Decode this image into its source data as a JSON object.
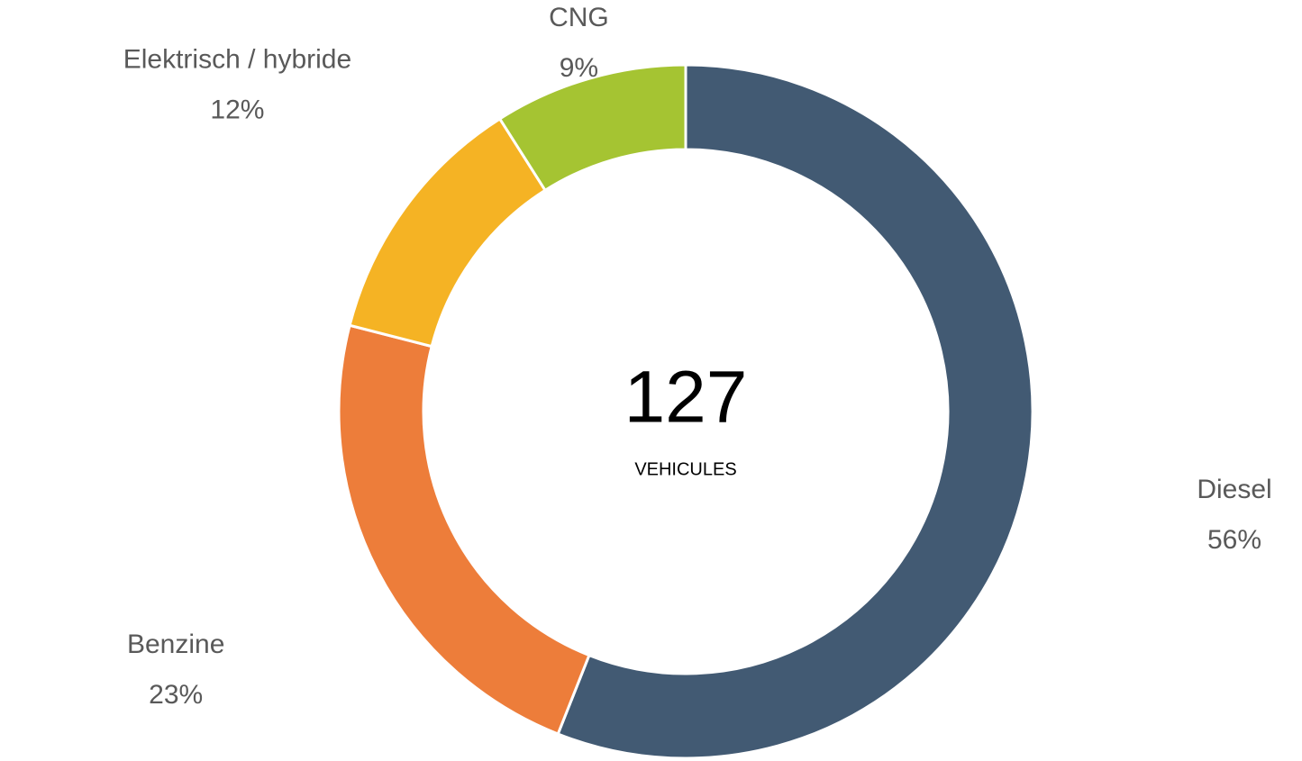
{
  "chart_data": {
    "type": "donut",
    "categories": [
      "Diesel",
      "Benzine",
      "Elektrisch / hybride",
      "CNG"
    ],
    "values": [
      56,
      23,
      12,
      9
    ],
    "value_labels": [
      "56%",
      "23%",
      "12%",
      "9%"
    ],
    "colors": [
      "#425a73",
      "#ed7d3a",
      "#f5b324",
      "#a5c432"
    ],
    "center_value": 127,
    "center_label": "VEHICULES"
  }
}
